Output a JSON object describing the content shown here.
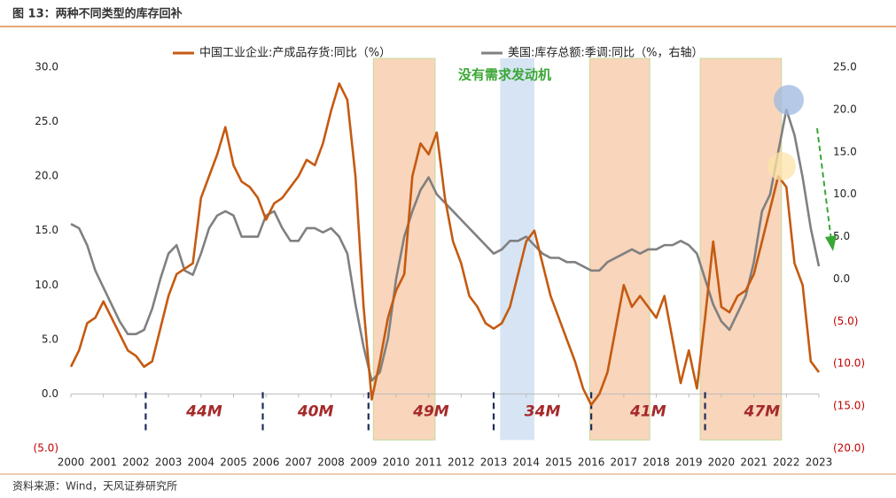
{
  "chart_data": {
    "type": "line",
    "title": "图 13：两种不同类型的库存回补",
    "source": "资料来源：Wind，天风证券研究所",
    "annotation": "没有需求发动机",
    "x": [
      2000,
      2000.25,
      2000.5,
      2000.75,
      2001,
      2001.25,
      2001.5,
      2001.75,
      2002,
      2002.25,
      2002.5,
      2002.75,
      2003,
      2003.25,
      2003.5,
      2003.75,
      2004,
      2004.25,
      2004.5,
      2004.75,
      2005,
      2005.25,
      2005.5,
      2005.75,
      2006,
      2006.25,
      2006.5,
      2006.75,
      2007,
      2007.25,
      2007.5,
      2007.75,
      2008,
      2008.25,
      2008.5,
      2008.75,
      2009,
      2009.25,
      2009.5,
      2009.75,
      2010,
      2010.25,
      2010.5,
      2010.75,
      2011,
      2011.25,
      2011.5,
      2011.75,
      2012,
      2012.25,
      2012.5,
      2012.75,
      2013,
      2013.25,
      2013.5,
      2013.75,
      2014,
      2014.25,
      2014.5,
      2014.75,
      2015,
      2015.25,
      2015.5,
      2015.75,
      2016,
      2016.25,
      2016.5,
      2016.75,
      2017,
      2017.25,
      2017.5,
      2017.75,
      2018,
      2018.25,
      2018.5,
      2018.75,
      2019,
      2019.25,
      2019.5,
      2019.75,
      2020,
      2020.25,
      2020.5,
      2020.75,
      2021,
      2021.25,
      2021.5,
      2021.75,
      2022,
      2022.25,
      2022.5,
      2022.75,
      2023
    ],
    "series": [
      {
        "name": "中国工业企业:产成品存货:同比（%）",
        "color": "#c55a11",
        "axis": "y",
        "values": [
          2.5,
          4,
          6.5,
          7,
          8.5,
          7,
          5.5,
          4,
          3.5,
          2.5,
          3,
          6,
          9,
          11,
          11.5,
          12,
          18,
          20,
          22,
          24.5,
          21,
          19.5,
          19,
          18,
          16,
          17.5,
          18,
          19,
          20,
          21.5,
          21,
          23,
          26,
          28.5,
          27,
          20,
          8,
          -0.5,
          3,
          7,
          9.5,
          11,
          20,
          23,
          22,
          24,
          18,
          14,
          12,
          9,
          8,
          6.5,
          6,
          6.5,
          8,
          11,
          14,
          15,
          12,
          9,
          7,
          5,
          3,
          0.5,
          -1,
          0,
          2,
          6,
          10,
          8,
          9,
          8,
          7,
          9,
          5,
          1,
          4,
          0.5,
          7,
          14,
          8,
          7.5,
          9,
          9.5,
          11,
          14,
          17,
          20,
          19,
          12,
          10,
          3,
          2
        ]
      },
      {
        "name": "美国:库存总额:季调:同比（%，右轴）",
        "color": "#808080",
        "axis": "y2",
        "values": [
          6.5,
          6,
          4,
          1,
          -1,
          -3,
          -5,
          -6.5,
          -6.5,
          -6,
          -3.5,
          0,
          3,
          4,
          1,
          0.5,
          3,
          6,
          7.5,
          8,
          7.5,
          5,
          5,
          5,
          7.5,
          8,
          6,
          4.5,
          4.5,
          6,
          6,
          5.5,
          6,
          5,
          3,
          -3,
          -8,
          -12,
          -11,
          -7,
          0,
          5,
          8,
          10.5,
          12,
          10,
          9,
          8,
          7,
          6,
          5,
          4,
          3,
          3.5,
          4.5,
          4.5,
          5,
          4,
          3,
          2.5,
          2.5,
          2,
          2,
          1.5,
          1,
          1,
          2,
          2.5,
          3,
          3.5,
          3,
          3.5,
          3.5,
          4,
          4,
          4.5,
          4,
          3,
          0,
          -3,
          -5,
          -6,
          -4,
          -2,
          2,
          8,
          10,
          15,
          20,
          17,
          12,
          6,
          1.5
        ]
      }
    ],
    "xlim": [
      2000,
      2023
    ],
    "xticks": [
      2000,
      2001,
      2002,
      2003,
      2004,
      2005,
      2006,
      2007,
      2008,
      2009,
      2010,
      2011,
      2012,
      2013,
      2014,
      2015,
      2016,
      2017,
      2018,
      2019,
      2020,
      2021,
      2022,
      2023
    ],
    "ylim": [
      -5,
      30
    ],
    "yticks": [
      {
        "value": -5,
        "label": "(5.0)"
      },
      {
        "value": 0,
        "label": "0.0"
      },
      {
        "value": 5,
        "label": "5.0"
      },
      {
        "value": 10,
        "label": "10.0"
      },
      {
        "value": 15,
        "label": "15.0"
      },
      {
        "value": 20,
        "label": "20.0"
      },
      {
        "value": 25,
        "label": "25.0"
      },
      {
        "value": 30,
        "label": "30.0"
      }
    ],
    "y2lim": [
      -20,
      25
    ],
    "y2ticks": [
      {
        "value": -20,
        "label": "(20.0)"
      },
      {
        "value": -15,
        "label": "(15.0)"
      },
      {
        "value": -10,
        "label": "(10.0)"
      },
      {
        "value": -5,
        "label": "(5.0)"
      },
      {
        "value": 0,
        "label": "0.0"
      },
      {
        "value": 5,
        "label": "5.0"
      },
      {
        "value": 10,
        "label": "10.0"
      },
      {
        "value": 15,
        "label": "15.0"
      },
      {
        "value": 20,
        "label": "20.0"
      },
      {
        "value": 25,
        "label": "25.0"
      }
    ],
    "shaded_regions": [
      {
        "start": 2009.3,
        "end": 2011.2,
        "color": "#f8d5bb"
      },
      {
        "start": 2013.2,
        "end": 2014.25,
        "color": "#d6e4f4"
      },
      {
        "start": 2015.95,
        "end": 2017.8,
        "color": "#f8d5bb"
      },
      {
        "start": 2019.35,
        "end": 2021.85,
        "color": "#f8d5bb"
      }
    ],
    "cycle_markers": [
      2002.3,
      2005.9,
      2009.15,
      2013.0,
      2016.0,
      2019.5
    ],
    "cycle_labels": [
      "44M",
      "40M",
      "49M",
      "34M",
      "41M",
      "47M"
    ]
  }
}
